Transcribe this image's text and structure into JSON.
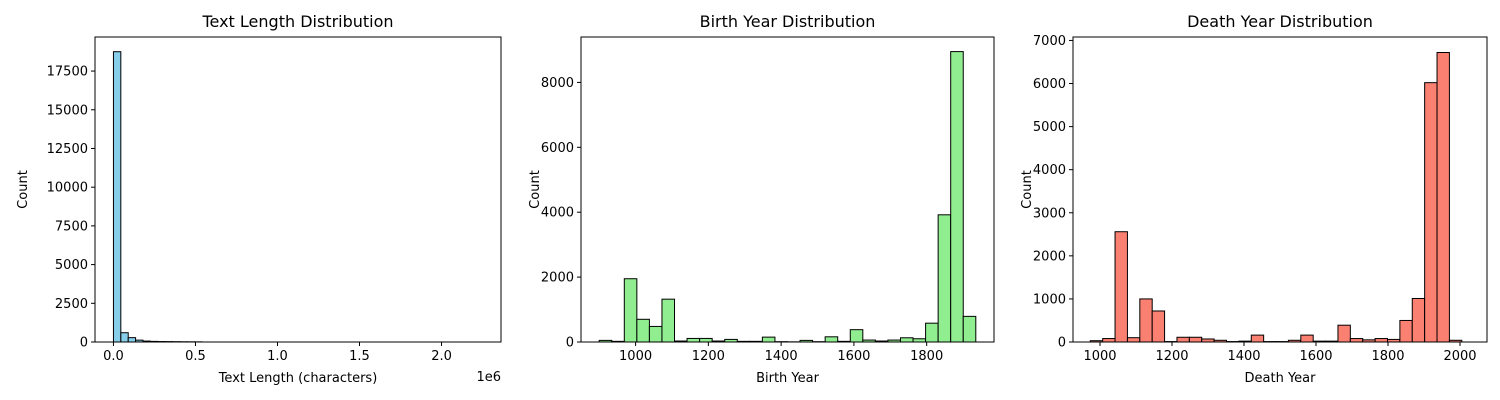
{
  "chart_data": [
    {
      "type": "bar",
      "title": "Text Length Distribution",
      "xlabel": "Text Length (characters)",
      "ylabel": "Count",
      "x_offset_label": "1e6",
      "color": "#87ceeb",
      "xlim": [
        -0.1125,
        2.3625
      ],
      "ylim": [
        0,
        19700
      ],
      "xticks": [
        0.0,
        0.5,
        1.0,
        1.5,
        2.0
      ],
      "xtick_labels": [
        "0.0",
        "0.5",
        "1.0",
        "1.5",
        "2.0"
      ],
      "yticks": [
        0,
        2500,
        5000,
        7500,
        10000,
        12500,
        15000,
        17500
      ],
      "ytick_labels": [
        "0",
        "2500",
        "5000",
        "7500",
        "10000",
        "12500",
        "15000",
        "17500"
      ],
      "bin_start": 0.0,
      "bin_width": 0.045,
      "values": [
        18750,
        600,
        280,
        120,
        60,
        40,
        30,
        25,
        20,
        15,
        12,
        10,
        0,
        0,
        0,
        0,
        0,
        0,
        0,
        0,
        0,
        0,
        0,
        0,
        0,
        0,
        0,
        0,
        0,
        0,
        0,
        0,
        0,
        0,
        0,
        0,
        0,
        0,
        0,
        0,
        0,
        0,
        0,
        0,
        0,
        0,
        0,
        0,
        0,
        0
      ]
    },
    {
      "type": "bar",
      "title": "Birth Year Distribution",
      "xlabel": "Birth Year",
      "ylabel": "Count",
      "color": "#90ee90",
      "xlim": [
        850,
        1985
      ],
      "ylim": [
        0,
        9400
      ],
      "xticks": [
        1000,
        1200,
        1400,
        1600,
        1800
      ],
      "xtick_labels": [
        "1000",
        "1200",
        "1400",
        "1600",
        "1800"
      ],
      "yticks": [
        0,
        2000,
        4000,
        6000,
        8000
      ],
      "ytick_labels": [
        "0",
        "2000",
        "4000",
        "6000",
        "8000"
      ],
      "bin_start": 900,
      "bin_width": 34.5,
      "values": [
        50,
        20,
        1950,
        700,
        480,
        1320,
        30,
        110,
        110,
        30,
        80,
        20,
        20,
        150,
        10,
        5,
        50,
        10,
        160,
        20,
        380,
        60,
        30,
        60,
        130,
        100,
        580,
        3920,
        8950,
        790
      ]
    },
    {
      "type": "bar",
      "title": "Death Year Distribution",
      "xlabel": "Death Year",
      "ylabel": "Count",
      "color": "#fa8072",
      "xlim": [
        925,
        2075
      ],
      "ylim": [
        0,
        7080
      ],
      "xticks": [
        1000,
        1200,
        1400,
        1600,
        1800,
        2000
      ],
      "xtick_labels": [
        "1000",
        "1200",
        "1400",
        "1600",
        "1800",
        "2000"
      ],
      "yticks": [
        0,
        1000,
        2000,
        3000,
        4000,
        5000,
        6000,
        7000
      ],
      "ytick_labels": [
        "0",
        "1000",
        "2000",
        "3000",
        "4000",
        "5000",
        "6000",
        "7000"
      ],
      "bin_start": 973,
      "bin_width": 34.4,
      "values": [
        30,
        80,
        2560,
        100,
        1000,
        720,
        10,
        110,
        110,
        70,
        40,
        10,
        20,
        160,
        10,
        10,
        40,
        160,
        20,
        20,
        390,
        80,
        50,
        80,
        60,
        500,
        1010,
        6020,
        6720,
        40
      ]
    }
  ]
}
